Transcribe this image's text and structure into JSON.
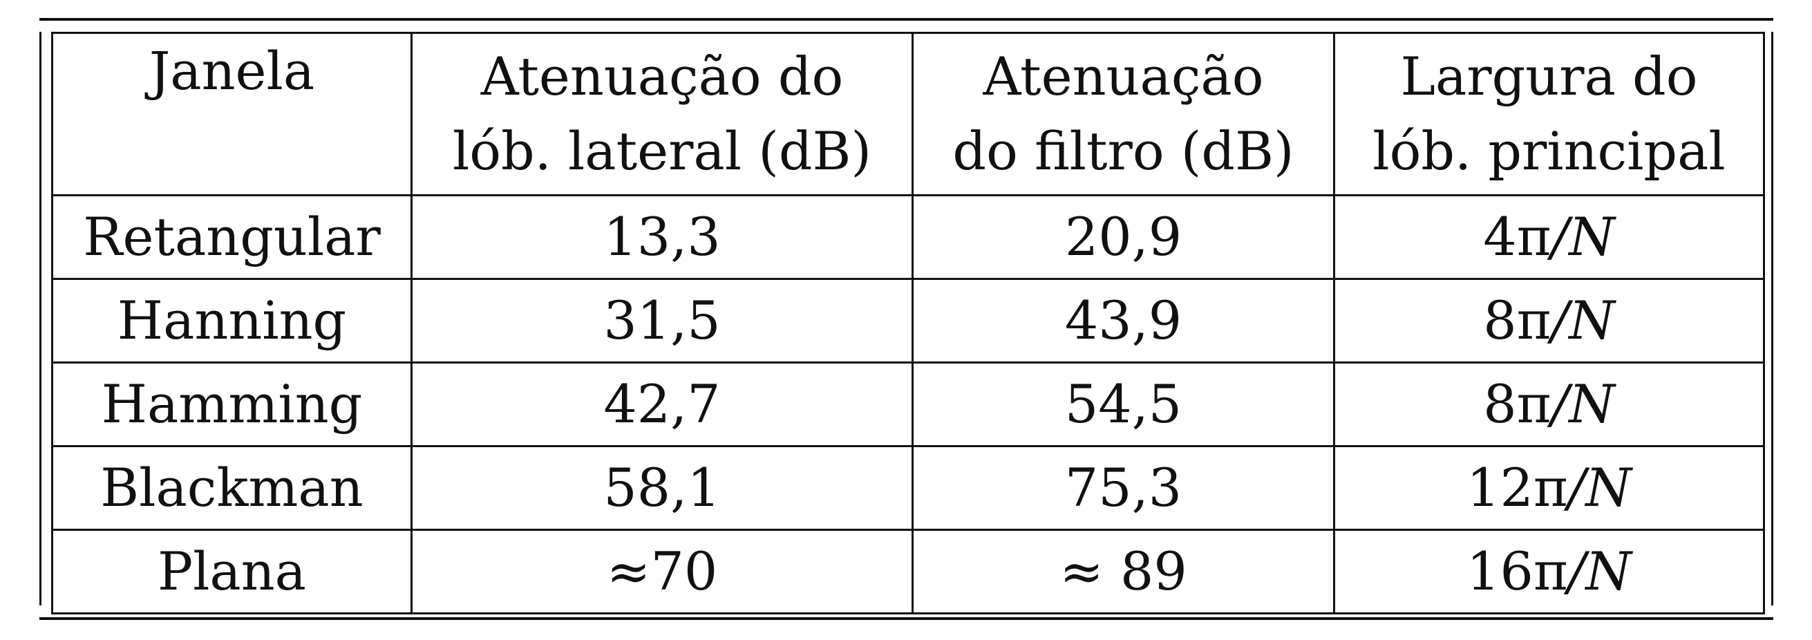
{
  "table": {
    "headers": [
      {
        "line1": "Janela",
        "line2": ""
      },
      {
        "line1": "Atenuação do",
        "line2": "lób. lateral (dB)"
      },
      {
        "line1": "Atenuação",
        "line2": "do filtro (dB)"
      },
      {
        "line1": "Largura do",
        "line2": "lób. principal"
      }
    ],
    "rows": [
      {
        "janela": "Retangular",
        "lob_lateral": "13,3",
        "filtro": "20,9",
        "largura_coef": "4π",
        "largura_div": "/N"
      },
      {
        "janela": "Hanning",
        "lob_lateral": "31,5",
        "filtro": "43,9",
        "largura_coef": "8π",
        "largura_div": "/N"
      },
      {
        "janela": "Hamming",
        "lob_lateral": "42,7",
        "filtro": "54,5",
        "largura_coef": "8π",
        "largura_div": "/N"
      },
      {
        "janela": "Blackman",
        "lob_lateral": "58,1",
        "filtro": "75,3",
        "largura_coef": "12π",
        "largura_div": "/N"
      },
      {
        "janela": "Plana",
        "lob_lateral": "≈70",
        "filtro": "≈ 89",
        "largura_coef": "16π",
        "largura_div": "/N"
      }
    ]
  }
}
